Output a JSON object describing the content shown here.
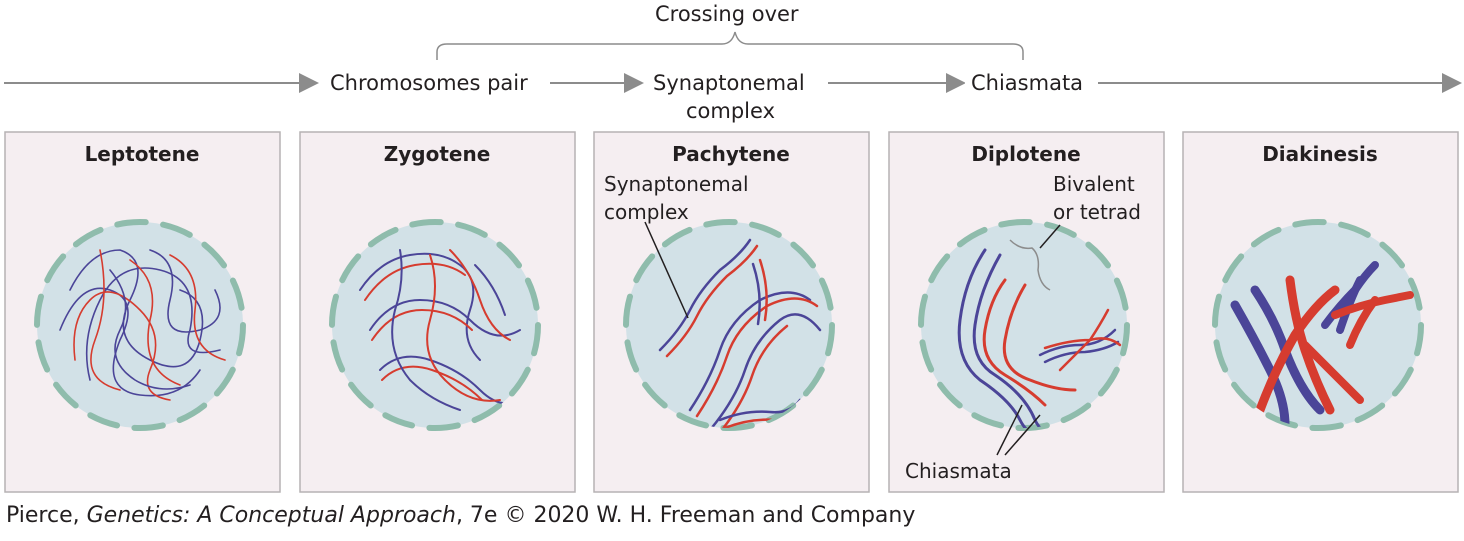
{
  "header": {
    "crossing_over": "Crossing over",
    "step1": "Chromosomes pair",
    "step2_line1": "Synaptonemal",
    "step2_line2": "complex",
    "step3": "Chiasmata"
  },
  "panels": [
    {
      "title": "Leptotene"
    },
    {
      "title": "Zygotene"
    },
    {
      "title": "Pachytene"
    },
    {
      "title": "Diplotene"
    },
    {
      "title": "Diakinesis"
    }
  ],
  "labels": {
    "pachytene_line1": "Synaptonemal",
    "pachytene_line2": "complex",
    "bivalent_line1": "Bivalent",
    "bivalent_line2": "or tetrad",
    "chiasmata": "Chiasmata"
  },
  "credit": {
    "prefix": "Pierce, ",
    "book": "Genetics: A Conceptual Approach",
    "suffix": ", 7e © 2020 W. H. Freeman and Company"
  },
  "colors": {
    "panel_bg": "#f5eef1",
    "panel_border": "#b6b2b4",
    "nucleus_fill": "#d2e1e7",
    "envelope": "#8fbcac",
    "red": "#d63c2f",
    "blue": "#4b4598",
    "arrow": "#8c8c8c"
  }
}
